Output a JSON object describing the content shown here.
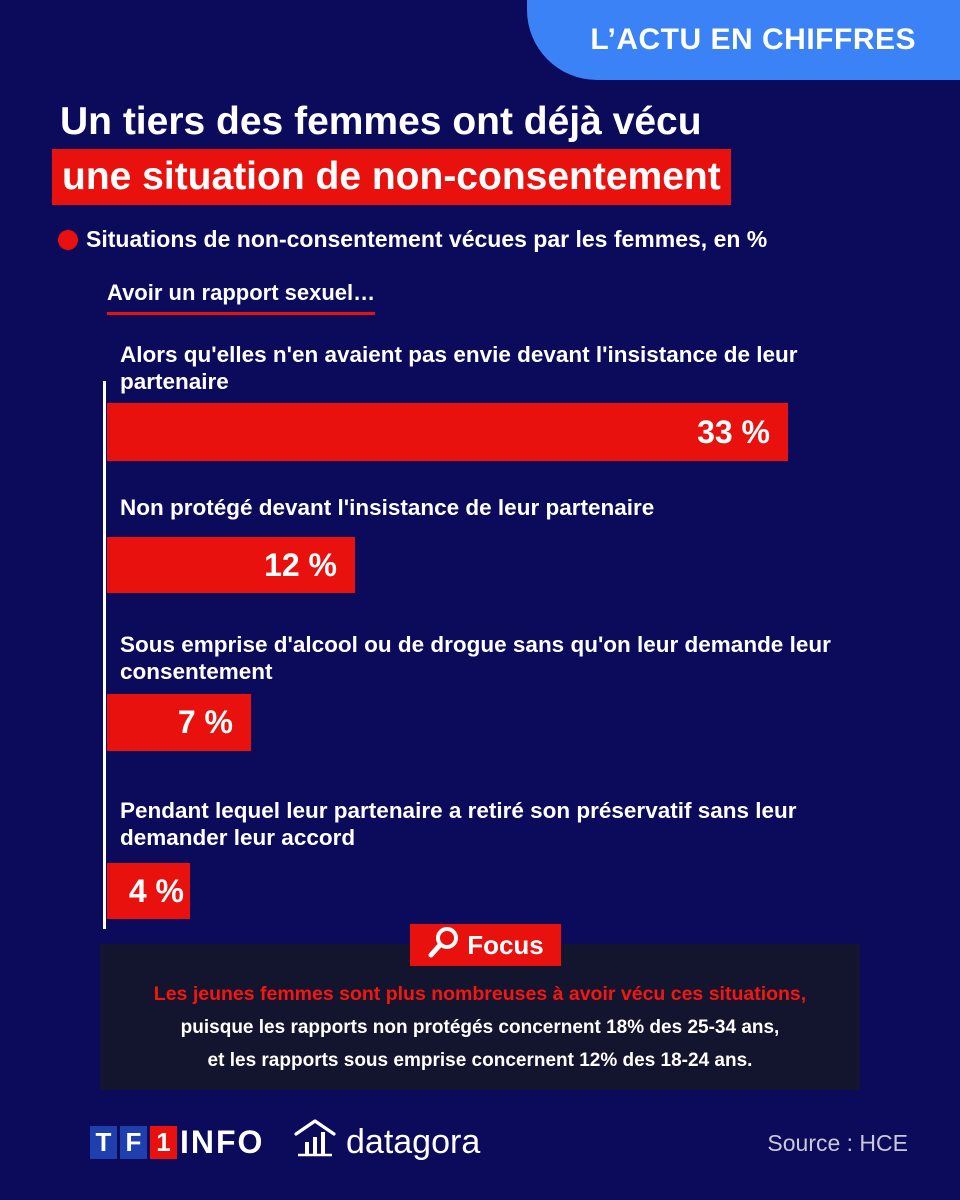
{
  "badge": "L’ACTU EN CHIFFRES",
  "title_line1": "Un tiers des femmes ont déjà vécu",
  "title_line2": "une situation de non-consentement",
  "colors": {
    "background": "#0b0a5b",
    "accent_red": "#e8110d",
    "badge_blue": "#3b82f6",
    "focus_box": "#13142e"
  },
  "chart_data": {
    "type": "bar",
    "orientation": "horizontal",
    "title": "Situations de non-consentement vécues par les femmes, en %",
    "group_label": "Avoir un rapport sexuel…",
    "unit": "%",
    "categories": [
      "Alors qu'elles n'en avaient pas envie devant l'insistance de leur partenaire",
      "Non protégé devant l'insistance de leur partenaire",
      "Sous emprise d'alcool ou de drogue sans qu'on leur demande leur consentement",
      "Pendant lequel leur partenaire a retiré son préservatif sans leur demander leur accord"
    ],
    "values": [
      33,
      12,
      7,
      4
    ],
    "value_labels": [
      "33 %",
      "12 %",
      "7 %",
      "4 %"
    ],
    "grid": false,
    "legend": "none"
  },
  "focus": {
    "tag": "Focus",
    "line1": "Les jeunes femmes sont plus nombreuses à avoir vécu ces situations,",
    "line2": "puisque les rapports non protégés concernent 18% des 25-34 ans,",
    "line3": "et les rapports sous emprise concernent 12% des 18-24 ans.",
    "icon": "magnifier-icon"
  },
  "footer": {
    "tf1_letters": [
      "T",
      "F",
      "1"
    ],
    "info": "INFO",
    "datagora": "datagora",
    "datagora_icon": "house-chart-icon",
    "source": "Source : HCE"
  }
}
